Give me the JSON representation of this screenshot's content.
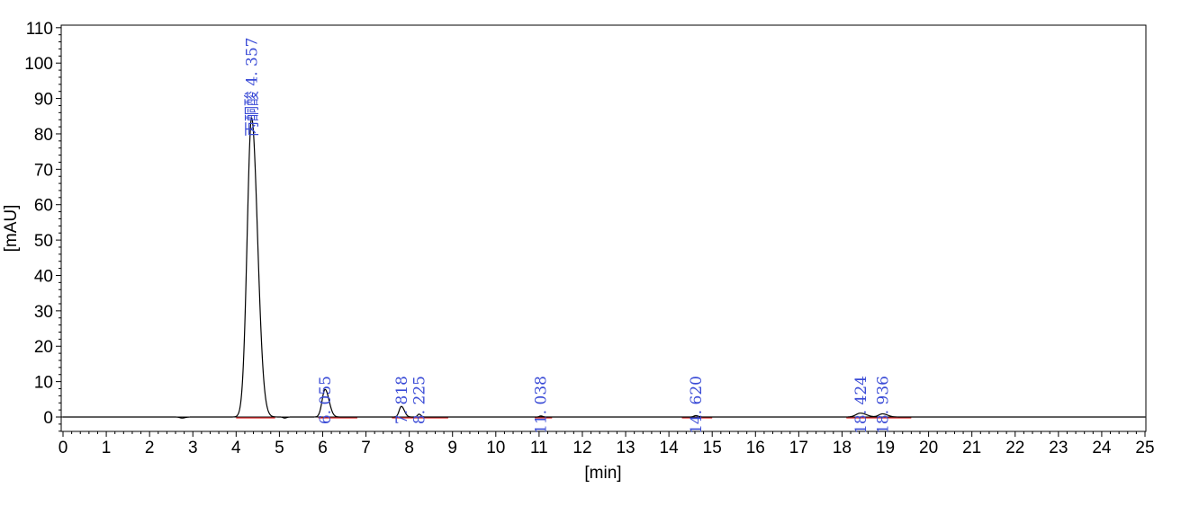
{
  "chart_data": {
    "type": "line",
    "title": "",
    "xlabel": "[min]",
    "ylabel": "[mAU]",
    "xlim": [
      0,
      25
    ],
    "ylim": [
      -4,
      110
    ],
    "x_ticks": [
      0,
      1,
      2,
      3,
      4,
      5,
      6,
      7,
      8,
      9,
      10,
      11,
      12,
      13,
      14,
      15,
      16,
      17,
      18,
      19,
      20,
      21,
      22,
      23,
      24,
      25
    ],
    "y_ticks": [
      0,
      10,
      20,
      30,
      40,
      50,
      60,
      70,
      80,
      90,
      100,
      110
    ],
    "grid": false,
    "series": [
      {
        "color": "#000000",
        "peaks": [
          {
            "time": 2.75,
            "height": -0.3,
            "width": 0.06
          },
          {
            "time": 4.357,
            "height": 84.5,
            "width": 0.12
          },
          {
            "time": 5.12,
            "height": -0.3,
            "width": 0.04
          },
          {
            "time": 6.055,
            "height": 7.8,
            "width": 0.08
          },
          {
            "time": 7.818,
            "height": 3.0,
            "width": 0.06
          },
          {
            "time": 8.225,
            "height": 0.8,
            "width": 0.04
          },
          {
            "time": 11.038,
            "height": 0.3,
            "width": 0.04
          },
          {
            "time": 14.62,
            "height": 0.4,
            "width": 0.05
          },
          {
            "time": 18.424,
            "height": 1.1,
            "width": 0.12
          },
          {
            "time": 18.936,
            "height": 0.9,
            "width": 0.1
          }
        ]
      }
    ],
    "baselines": {
      "color": "#e03030",
      "segments": [
        [
          4.0,
          4.9
        ],
        [
          5.9,
          6.8
        ],
        [
          7.6,
          8.9
        ],
        [
          10.9,
          11.3
        ],
        [
          14.3,
          15.0
        ],
        [
          18.1,
          19.6
        ]
      ]
    },
    "peak_labels": [
      {
        "time": 4.357,
        "text": "丙酮酸  4. 357"
      },
      {
        "time": 6.055,
        "text": "6. 055"
      },
      {
        "time": 7.818,
        "text": "7. 818"
      },
      {
        "time": 8.225,
        "text": "8. 225"
      },
      {
        "time": 11.038,
        "text": "11. 038"
      },
      {
        "time": 14.62,
        "text": "14. 620"
      },
      {
        "time": 18.424,
        "text": "18. 424"
      },
      {
        "time": 18.936,
        "text": "18. 936"
      }
    ],
    "label_color": "#3a4bd6"
  }
}
